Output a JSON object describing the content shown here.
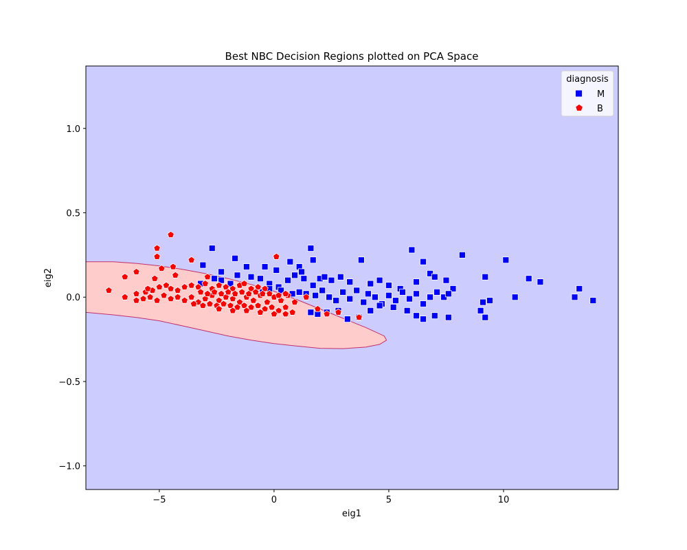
{
  "chart_data": {
    "type": "scatter",
    "title": "Best NBC Decision Regions plotted on PCA Space",
    "xlabel": "eig1",
    "ylabel": "eig2",
    "xlim": [
      -8.2,
      15.0
    ],
    "ylim": [
      -1.14,
      1.37
    ],
    "xticks": [
      -5,
      0,
      5,
      10
    ],
    "xtick_labels": [
      "−5",
      "0",
      "5",
      "10"
    ],
    "yticks": [
      -1.0,
      -0.5,
      0.0,
      0.5,
      1.0
    ],
    "ytick_labels": [
      "−1.0",
      "−0.5",
      "0.0",
      "0.5",
      "1.0"
    ],
    "grid": false,
    "regions": {
      "background_class": "M",
      "background_color": "#ccccff",
      "inner_class": "B",
      "inner_color": "#ffcccc",
      "boundary_color": "#c0306a",
      "boundary": [
        [
          -8.2,
          0.21
        ],
        [
          -7,
          0.21
        ],
        [
          -6,
          0.2
        ],
        [
          -5,
          0.185
        ],
        [
          -4,
          0.165
        ],
        [
          -3,
          0.14
        ],
        [
          -2,
          0.11
        ],
        [
          -1,
          0.075
        ],
        [
          0,
          0.035
        ],
        [
          1,
          -0.015
        ],
        [
          2,
          -0.07
        ],
        [
          3,
          -0.125
        ],
        [
          4,
          -0.18
        ],
        [
          4.8,
          -0.23
        ],
        [
          4.9,
          -0.255
        ],
        [
          4.6,
          -0.28
        ],
        [
          4,
          -0.296
        ],
        [
          3,
          -0.305
        ],
        [
          2,
          -0.303
        ],
        [
          1,
          -0.29
        ],
        [
          0,
          -0.275
        ],
        [
          -1,
          -0.255
        ],
        [
          -2,
          -0.23
        ],
        [
          -3,
          -0.2
        ],
        [
          -4,
          -0.17
        ],
        [
          -5,
          -0.14
        ],
        [
          -6,
          -0.12
        ],
        [
          -7,
          -0.105
        ],
        [
          -8.2,
          -0.09
        ]
      ]
    },
    "legend": {
      "title": "diagnosis",
      "placement": "top-right",
      "entries": [
        {
          "label": "M",
          "color": "#0000ff",
          "marker": "square"
        },
        {
          "label": "B",
          "color": "#ff0000",
          "marker": "pentagon"
        }
      ]
    },
    "series": [
      {
        "name": "M",
        "color": "#0000ff",
        "marker": "square",
        "points": [
          [
            -2.7,
            0.29
          ],
          [
            -3.1,
            0.19
          ],
          [
            -2.3,
            0.15
          ],
          [
            -1.7,
            0.23
          ],
          [
            -1.2,
            0.18
          ],
          [
            -0.4,
            0.18
          ],
          [
            0.1,
            0.16
          ],
          [
            0.7,
            0.21
          ],
          [
            1.1,
            0.18
          ],
          [
            1.6,
            0.29
          ],
          [
            1.7,
            0.22
          ],
          [
            -3.2,
            0.08
          ],
          [
            -2.6,
            0.11
          ],
          [
            -2.3,
            0.1
          ],
          [
            -1.9,
            0.08
          ],
          [
            -1.6,
            0.13
          ],
          [
            -1.0,
            0.12
          ],
          [
            -0.6,
            0.11
          ],
          [
            -0.2,
            0.08
          ],
          [
            0.2,
            0.06
          ],
          [
            0.6,
            0.1
          ],
          [
            0.9,
            0.13
          ],
          [
            1.2,
            0.15
          ],
          [
            1.3,
            0.11
          ],
          [
            1.7,
            0.07
          ],
          [
            2.0,
            0.11
          ],
          [
            2.2,
            0.12
          ],
          [
            2.5,
            0.1
          ],
          [
            2.9,
            0.12
          ],
          [
            3.3,
            0.09
          ],
          [
            3.8,
            0.22
          ],
          [
            4.2,
            0.08
          ],
          [
            4.6,
            0.1
          ],
          [
            5.0,
            0.07
          ],
          [
            5.5,
            0.05
          ],
          [
            6.0,
            0.28
          ],
          [
            6.2,
            0.09
          ],
          [
            6.5,
            0.21
          ],
          [
            6.8,
            0.14
          ],
          [
            7.0,
            0.12
          ],
          [
            7.5,
            0.1
          ],
          [
            7.8,
            0.05
          ],
          [
            8.2,
            0.25
          ],
          [
            9.2,
            0.12
          ],
          [
            10.1,
            0.22
          ],
          [
            11.1,
            0.11
          ],
          [
            11.6,
            0.09
          ],
          [
            13.3,
            0.05
          ],
          [
            -0.5,
            0.03
          ],
          [
            -0.2,
            0.05
          ],
          [
            0.3,
            0.04
          ],
          [
            0.8,
            0.02
          ],
          [
            1.1,
            0.03
          ],
          [
            1.4,
            0.02
          ],
          [
            1.8,
            0.01
          ],
          [
            2.1,
            0.04
          ],
          [
            2.4,
            0.0
          ],
          [
            2.7,
            -0.02
          ],
          [
            3.0,
            0.03
          ],
          [
            3.3,
            -0.01
          ],
          [
            3.6,
            0.04
          ],
          [
            3.9,
            -0.03
          ],
          [
            4.1,
            0.02
          ],
          [
            4.4,
            0.0
          ],
          [
            4.7,
            -0.04
          ],
          [
            5.0,
            0.01
          ],
          [
            5.3,
            -0.02
          ],
          [
            5.6,
            0.03
          ],
          [
            5.9,
            -0.01
          ],
          [
            6.2,
            0.02
          ],
          [
            6.5,
            -0.04
          ],
          [
            6.8,
            0.0
          ],
          [
            7.1,
            0.03
          ],
          [
            7.4,
            0.0
          ],
          [
            7.6,
            0.02
          ],
          [
            1.6,
            -0.09
          ],
          [
            1.9,
            -0.1
          ],
          [
            2.3,
            -0.09
          ],
          [
            2.8,
            -0.08
          ],
          [
            3.2,
            -0.13
          ],
          [
            3.7,
            -0.12
          ],
          [
            4.2,
            -0.08
          ],
          [
            4.6,
            -0.05
          ],
          [
            5.2,
            -0.06
          ],
          [
            5.8,
            -0.08
          ],
          [
            6.2,
            -0.11
          ],
          [
            6.5,
            -0.13
          ],
          [
            7.0,
            -0.11
          ],
          [
            7.6,
            -0.12
          ],
          [
            9.0,
            -0.08
          ],
          [
            9.1,
            -0.03
          ],
          [
            9.2,
            -0.12
          ],
          [
            9.4,
            -0.02
          ],
          [
            10.5,
            0.0
          ],
          [
            13.1,
            0.0
          ],
          [
            13.9,
            -0.02
          ]
        ]
      },
      {
        "name": "B",
        "color": "#ff0000",
        "marker": "pentagon",
        "points": [
          [
            -4.5,
            0.37
          ],
          [
            -5.1,
            0.29
          ],
          [
            -5.1,
            0.24
          ],
          [
            -4.9,
            0.17
          ],
          [
            -4.4,
            0.18
          ],
          [
            -3.6,
            0.22
          ],
          [
            -2.9,
            0.12
          ],
          [
            0.1,
            0.24
          ],
          [
            -7.2,
            0.04
          ],
          [
            -6.5,
            0.12
          ],
          [
            -6.0,
            0.15
          ],
          [
            -5.2,
            0.11
          ],
          [
            -4.3,
            0.13
          ],
          [
            -6.5,
            0.0
          ],
          [
            -6.0,
            0.02
          ],
          [
            -5.6,
            0.03
          ],
          [
            -5.3,
            0.04
          ],
          [
            -5.0,
            0.06
          ],
          [
            -4.7,
            0.07
          ],
          [
            -4.5,
            0.05
          ],
          [
            -4.2,
            0.04
          ],
          [
            -3.9,
            0.06
          ],
          [
            -3.6,
            0.07
          ],
          [
            -3.3,
            0.06
          ],
          [
            -3.0,
            0.08
          ],
          [
            -2.7,
            0.05
          ],
          [
            -2.4,
            0.07
          ],
          [
            -2.1,
            0.06
          ],
          [
            -1.8,
            0.05
          ],
          [
            -1.5,
            0.07
          ],
          [
            -1.3,
            0.08
          ],
          [
            -1.0,
            0.05
          ],
          [
            -0.7,
            0.06
          ],
          [
            -0.4,
            0.05
          ],
          [
            -5.7,
            -0.01
          ],
          [
            -5.4,
            0.0
          ],
          [
            -5.1,
            -0.02
          ],
          [
            -4.8,
            0.01
          ],
          [
            -4.5,
            -0.01
          ],
          [
            -4.2,
            0.0
          ],
          [
            -3.9,
            -0.02
          ],
          [
            -3.6,
            0.0
          ],
          [
            -3.3,
            -0.03
          ],
          [
            -3.0,
            -0.01
          ],
          [
            -2.7,
            0.01
          ],
          [
            -2.4,
            -0.02
          ],
          [
            -2.1,
            0.0
          ],
          [
            -1.8,
            -0.01
          ],
          [
            -1.5,
            -0.03
          ],
          [
            -1.2,
            0.0
          ],
          [
            -0.9,
            -0.02
          ],
          [
            -0.6,
            0.01
          ],
          [
            -0.3,
            -0.03
          ],
          [
            0.0,
            0.0
          ],
          [
            0.3,
            -0.02
          ],
          [
            0.6,
            0.01
          ],
          [
            0.9,
            -0.03
          ],
          [
            -3.2,
            0.03
          ],
          [
            -2.9,
            0.02
          ],
          [
            -2.6,
            0.03
          ],
          [
            -2.3,
            0.02
          ],
          [
            -2.0,
            0.03
          ],
          [
            -1.7,
            0.02
          ],
          [
            -1.4,
            0.03
          ],
          [
            -1.1,
            0.02
          ],
          [
            -0.8,
            0.03
          ],
          [
            -0.5,
            0.02
          ],
          [
            -0.2,
            0.02
          ],
          [
            0.2,
            0.01
          ],
          [
            0.5,
            0.02
          ],
          [
            -3.5,
            -0.04
          ],
          [
            -3.1,
            -0.05
          ],
          [
            -2.8,
            -0.04
          ],
          [
            -2.5,
            -0.05
          ],
          [
            -2.2,
            -0.04
          ],
          [
            -1.9,
            -0.05
          ],
          [
            -1.6,
            -0.06
          ],
          [
            -1.3,
            -0.05
          ],
          [
            -1.0,
            -0.06
          ],
          [
            -0.7,
            -0.05
          ],
          [
            -0.4,
            -0.07
          ],
          [
            -0.1,
            -0.06
          ],
          [
            0.2,
            -0.08
          ],
          [
            0.5,
            -0.06
          ],
          [
            0.8,
            -0.09
          ],
          [
            -2.4,
            -0.07
          ],
          [
            -1.8,
            -0.08
          ],
          [
            -1.2,
            -0.08
          ],
          [
            -0.6,
            -0.09
          ],
          [
            0.0,
            -0.1
          ],
          [
            0.5,
            -0.1
          ],
          [
            1.4,
            0.0
          ],
          [
            1.9,
            -0.07
          ],
          [
            2.3,
            -0.1
          ],
          [
            2.8,
            -0.09
          ],
          [
            3.7,
            -0.12
          ],
          [
            -5.5,
            0.05
          ],
          [
            -6.0,
            -0.02
          ]
        ]
      }
    ]
  }
}
